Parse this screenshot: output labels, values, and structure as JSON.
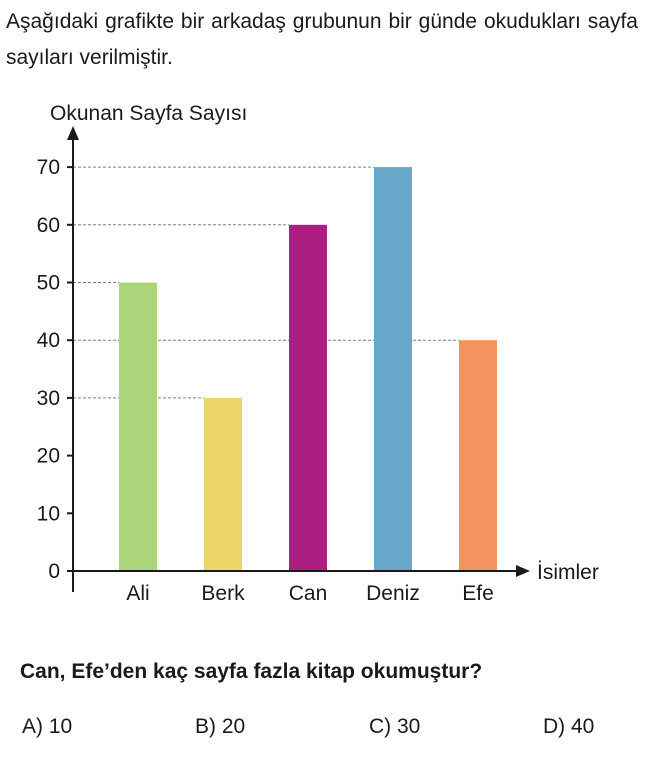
{
  "intro": "Aşağıdaki grafikte bir arkadaş grubunun bir günde okudukları sayfa sayıları verilmiştir.",
  "chart_data": {
    "type": "bar",
    "ylabel": "Okunan Sayfa Sayısı",
    "xlabel": "İsimler",
    "categories": [
      "Ali",
      "Berk",
      "Can",
      "Deniz",
      "Efe"
    ],
    "values": [
      50,
      30,
      60,
      70,
      40
    ],
    "colors": [
      "#acd47a",
      "#ecd66a",
      "#ac1e82",
      "#67a7c9",
      "#f4935d"
    ],
    "ylim": [
      0,
      70
    ],
    "yticks": [
      0,
      10,
      20,
      30,
      40,
      50,
      60,
      70
    ],
    "grid": "dashed reference lines at bar tops"
  },
  "question": "Can, Efe’den kaç sayfa fazla kitap okumuştur?",
  "options": [
    "A) 10",
    "B) 20",
    "C) 30",
    "D) 40"
  ]
}
